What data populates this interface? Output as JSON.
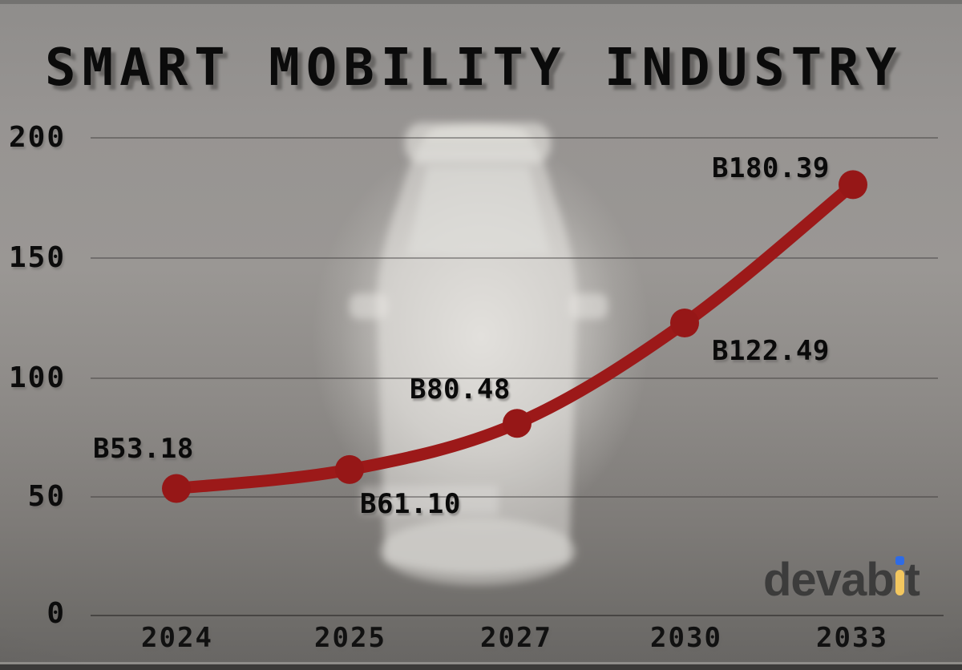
{
  "title": "SMART MOBILITY INDUSTRY",
  "logo": {
    "text_before_i": "devab",
    "text_after_i": "t",
    "yellow": "#F3C75F",
    "blue": "#2E6BE5",
    "gray": "#3A3A3A"
  },
  "chart_data": {
    "type": "line",
    "title": "SMART MOBILITY INDUSTRY",
    "categories": [
      "2024",
      "2025",
      "2027",
      "2030",
      "2033"
    ],
    "values": [
      53.18,
      61.1,
      80.48,
      122.49,
      180.39
    ],
    "point_labels": [
      "B53.18",
      "B61.10",
      "B80.48",
      "B122.49",
      "B180.39"
    ],
    "y_ticks": [
      "200",
      "150",
      "100",
      "50",
      "0"
    ],
    "ylim": [
      0,
      200
    ],
    "xlabel": "",
    "ylabel": "",
    "grid": true,
    "legend": "none",
    "line_color": "#9C1919",
    "marker_color": "#961717"
  }
}
